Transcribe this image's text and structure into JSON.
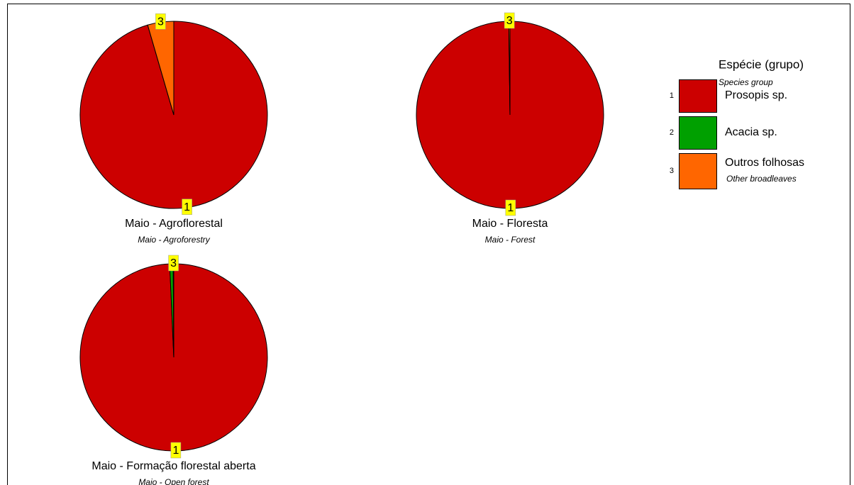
{
  "chart_data": [
    {
      "type": "pie",
      "title": "Maio - Agroflorestal",
      "subtitle": "Maio - Agroforestry",
      "values": [
        95.5,
        0,
        4.5
      ],
      "slice_labels": [
        "1",
        null,
        "3"
      ]
    },
    {
      "type": "pie",
      "title": "Maio - Floresta",
      "subtitle": "Maio - Forest",
      "values": [
        99.8,
        0,
        0.2
      ],
      "slice_labels": [
        "1",
        null,
        "3"
      ]
    },
    {
      "type": "pie",
      "title": "Maio - Formação florestal aberta",
      "subtitle": "Maio - Open forest",
      "values": [
        99.3,
        0.6,
        0.1
      ],
      "slice_labels": [
        "1",
        null,
        "3"
      ]
    }
  ],
  "legend": {
    "title": "Espécie (grupo)",
    "subtitle": "Species group",
    "items": [
      {
        "number": "1",
        "name": "Prosopis sp.",
        "color": "#cc0000"
      },
      {
        "number": "2",
        "name": "Acacia sp.",
        "color": "#00a000"
      },
      {
        "number": "3",
        "name": "Outros folhosas",
        "subtitle": "Other broadleaves",
        "color": "#ff6600"
      }
    ]
  }
}
